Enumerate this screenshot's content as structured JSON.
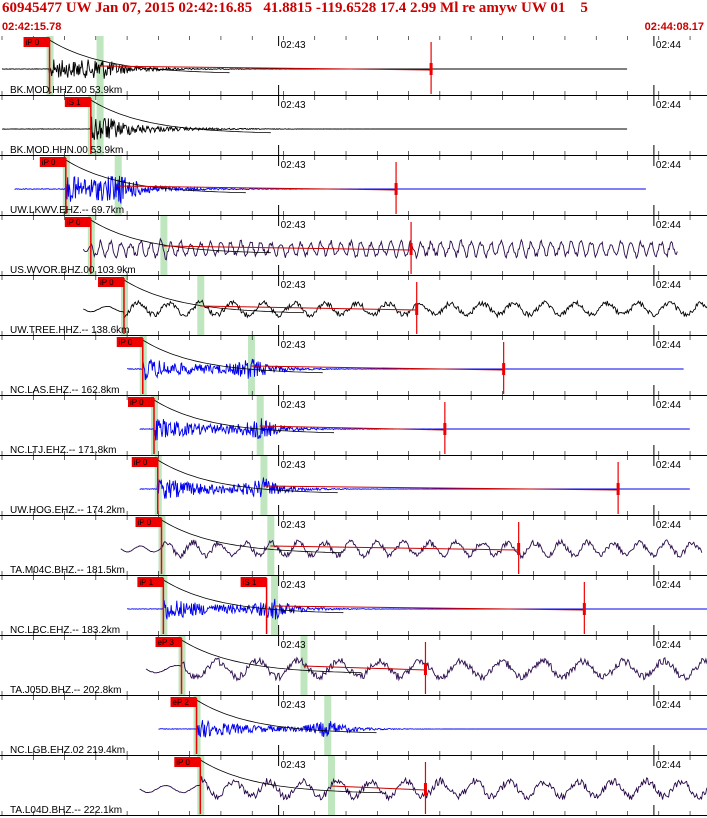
{
  "header": {
    "title": "60945477 UW Jan 07, 2015 02:42:16.85   41.8815 -119.6528 17.4 2.99 Ml re amyw UW 01    5",
    "time_start": "02:42:15.78",
    "time_end": "02:44:08.17"
  },
  "colors": {
    "header_text": "#cc0000",
    "pick_marker": "#ee0000",
    "pick_window": "#bfe6bf",
    "trace_blue": "#0000ee",
    "trace_black": "#000000",
    "trace_purple": "#2a0a4a",
    "theory_curve": "#000000",
    "coda_line": "#cc0000"
  },
  "chart_data": {
    "type": "seismogram",
    "title": "60945477 UW Jan 07, 2015 02:42:16.85   41.8815 -119.6528 17.4 2.99 Ml re amyw UW 01    5",
    "time_axis": {
      "start": "02:42:15.78",
      "end": "02:44:08.17",
      "tick_labels": [
        "02:43",
        "02:44"
      ],
      "tick_seconds": [
        44.22,
        104.22
      ],
      "span_seconds": 112.39
    },
    "traces": [
      {
        "label": "BK.MOD.HHZ.00 53.9km",
        "color": "#000000",
        "pick_label": "iP 0",
        "pick_s": 7.6,
        "s_arrival_s": 15.6,
        "coda_end_s": 68.6,
        "trace_start_s": 0.0,
        "trace_end_s": 100.0,
        "amplitude": 0.55,
        "period_s": 1.2
      },
      {
        "label": "BK.MOD.HHN.00 53.9km",
        "color": "#000000",
        "pick_label": "iS 1",
        "pick_s": 14.2,
        "s_arrival_s": 15.6,
        "coda_end_s": 0,
        "trace_start_s": 0.0,
        "trace_end_s": 100.0,
        "amplitude": 0.5,
        "period_s": 1.2
      },
      {
        "label": "UW.LKWV.EHZ.-- 69.7km",
        "color": "#0000ee",
        "pick_label": "iP 0",
        "pick_s": 10.2,
        "s_arrival_s": 18.5,
        "coda_end_s": 63.0,
        "trace_start_s": 2.0,
        "trace_end_s": 103.0,
        "amplitude": 0.75,
        "period_s": 0.8
      },
      {
        "label": "US.WVOR.BHZ.00 103.9km",
        "color": "#2a0a4a",
        "pick_label": "iP 0",
        "pick_s": 14.2,
        "s_arrival_s": 25.8,
        "coda_end_s": 65.4,
        "trace_start_s": 13.0,
        "trace_end_s": 108.0,
        "amplitude": 0.45,
        "period_s": 1.6
      },
      {
        "label": "UW.TREE.HHZ.-- 138.6km",
        "color": "#000000",
        "pick_label": "iP 0",
        "pick_s": 19.5,
        "s_arrival_s": 31.7,
        "coda_end_s": 66.3,
        "trace_start_s": 13.0,
        "trace_end_s": 113.0,
        "amplitude": 0.4,
        "period_s": 5.0
      },
      {
        "label": "NC.LAS.EHZ.-- 162.8km",
        "color": "#0000ee",
        "pick_label": "iP 0",
        "pick_s": 22.5,
        "s_arrival_s": 39.8,
        "coda_end_s": 80.2,
        "trace_start_s": 20.0,
        "trace_end_s": 109.0,
        "amplitude": 0.65,
        "period_s": 0.8
      },
      {
        "label": "NC.LTJ.EHZ.-- 171.8km",
        "color": "#0000ee",
        "pick_label": "iP 0",
        "pick_s": 24.3,
        "s_arrival_s": 41.2,
        "coda_end_s": 70.8,
        "trace_start_s": 22.0,
        "trace_end_s": 110.0,
        "amplitude": 0.65,
        "period_s": 0.8
      },
      {
        "label": "UW.HOG.EHZ.-- 174.2km",
        "color": "#0000ee",
        "pick_label": "iP 0",
        "pick_s": 24.9,
        "s_arrival_s": 41.8,
        "coda_end_s": 98.5,
        "trace_start_s": 22.0,
        "trace_end_s": 110.0,
        "amplitude": 0.65,
        "period_s": 0.8
      },
      {
        "label": "TA.M04C.BHZ.-- 181.5km",
        "color": "#2a0a4a",
        "pick_label": "iP 0",
        "pick_s": 25.5,
        "s_arrival_s": 42.9,
        "coda_end_s": 82.6,
        "trace_start_s": 19.0,
        "trace_end_s": 112.0,
        "amplitude": 0.45,
        "period_s": 4.2
      },
      {
        "label": "NC.LBC.EHZ.-- 183.2km",
        "color": "#0000ee",
        "pick_label": "iP 1",
        "pick_s": 25.8,
        "s_arrival_s": 43.5,
        "coda_end_s": 93.1,
        "trace_start_s": 20.0,
        "trace_end_s": 113.0,
        "amplitude": 0.65,
        "period_s": 0.8
      },
      {
        "label": "TA.J05D.BHZ.-- 202.8km",
        "color": "#2a0a4a",
        "pick_label": "eP 3",
        "pick_s": 28.7,
        "s_arrival_s": 48.2,
        "coda_end_s": 67.7,
        "trace_start_s": 23.0,
        "trace_end_s": 117.0,
        "amplitude": 0.55,
        "period_s": 6.5
      },
      {
        "label": "NC.LGB.EHZ.02 219.4km",
        "color": "#0000ee",
        "pick_label": "eP 2",
        "pick_s": 31.1,
        "s_arrival_s": 52.0,
        "coda_end_s": 0,
        "trace_start_s": 25.0,
        "trace_end_s": 117.0,
        "amplitude": 0.55,
        "period_s": 0.8
      },
      {
        "label": "TA.L04D.BHZ.-- 222.1km",
        "color": "#2a0a4a",
        "pick_label": "iP 0",
        "pick_s": 31.7,
        "s_arrival_s": 52.6,
        "coda_end_s": 67.7,
        "trace_start_s": 22.0,
        "trace_end_s": 117.0,
        "amplitude": 0.55,
        "period_s": 5.5
      }
    ],
    "extra_picks": [
      {
        "trace_index": 9,
        "pick_label": "iS 1",
        "pick_s": 42.3
      }
    ]
  }
}
